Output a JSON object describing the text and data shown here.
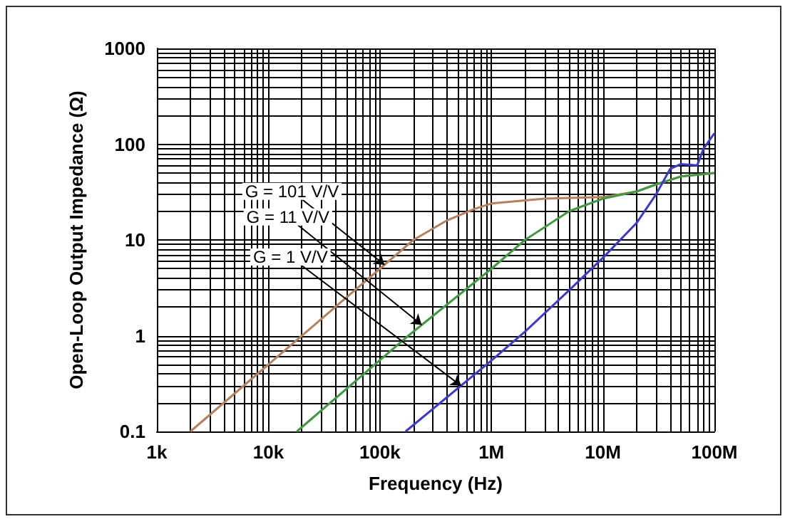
{
  "chart_data": {
    "type": "line",
    "xlabel": "Frequency (Hz)",
    "ylabel": "Open-Loop Output Impedance (Ω)",
    "log": "xy",
    "grid": true,
    "marker": "none",
    "line_style": "solid",
    "xlim": [
      1000,
      100000000
    ],
    "ylim": [
      0.1,
      1000
    ],
    "xticks": [
      {
        "value": 1000,
        "label": "1k"
      },
      {
        "value": 10000,
        "label": "10k"
      },
      {
        "value": 100000,
        "label": "100k"
      },
      {
        "value": 1000000,
        "label": "1M"
      },
      {
        "value": 10000000,
        "label": "10M"
      },
      {
        "value": 100000000,
        "label": "100M"
      }
    ],
    "yticks": [
      0.1,
      1,
      10,
      100,
      1000
    ],
    "series": [
      {
        "color": "#b8805a",
        "x": [
          2000,
          10000,
          100000,
          200000,
          400000,
          700000,
          1000000,
          3000000,
          10000000,
          20000000,
          30000000,
          50000000,
          100000000
        ],
        "values": [
          0.1,
          0.5,
          5,
          10,
          16,
          21,
          24,
          27,
          28,
          32,
          38,
          46,
          50
        ]
      },
      {
        "color": "#3f9a3f",
        "x": [
          18000,
          180000,
          1000000,
          2000000,
          5000000,
          10000000,
          20000000,
          30000000,
          50000000,
          100000000
        ],
        "values": [
          0.1,
          1,
          5,
          10,
          20,
          27,
          32,
          38,
          46,
          50
        ]
      },
      {
        "color": "#3a3ad2",
        "x": [
          170000,
          1000000,
          2000000,
          5000000,
          10000000,
          20000000,
          30000000,
          40000000,
          50000000,
          70000000,
          80000000,
          100000000
        ],
        "values": [
          0.1,
          0.55,
          1.1,
          3,
          6.5,
          15,
          30,
          55,
          62,
          60,
          90,
          130
        ]
      }
    ],
    "annotations": [
      {
        "text": "G = 101 V/V",
        "x": 110000,
        "y": 5.5
      },
      {
        "text": "G = 11 V/V",
        "x": 237000,
        "y": 1.3
      },
      {
        "text": "G = 1 V/V",
        "x": 535000,
        "y": 0.3
      }
    ]
  }
}
